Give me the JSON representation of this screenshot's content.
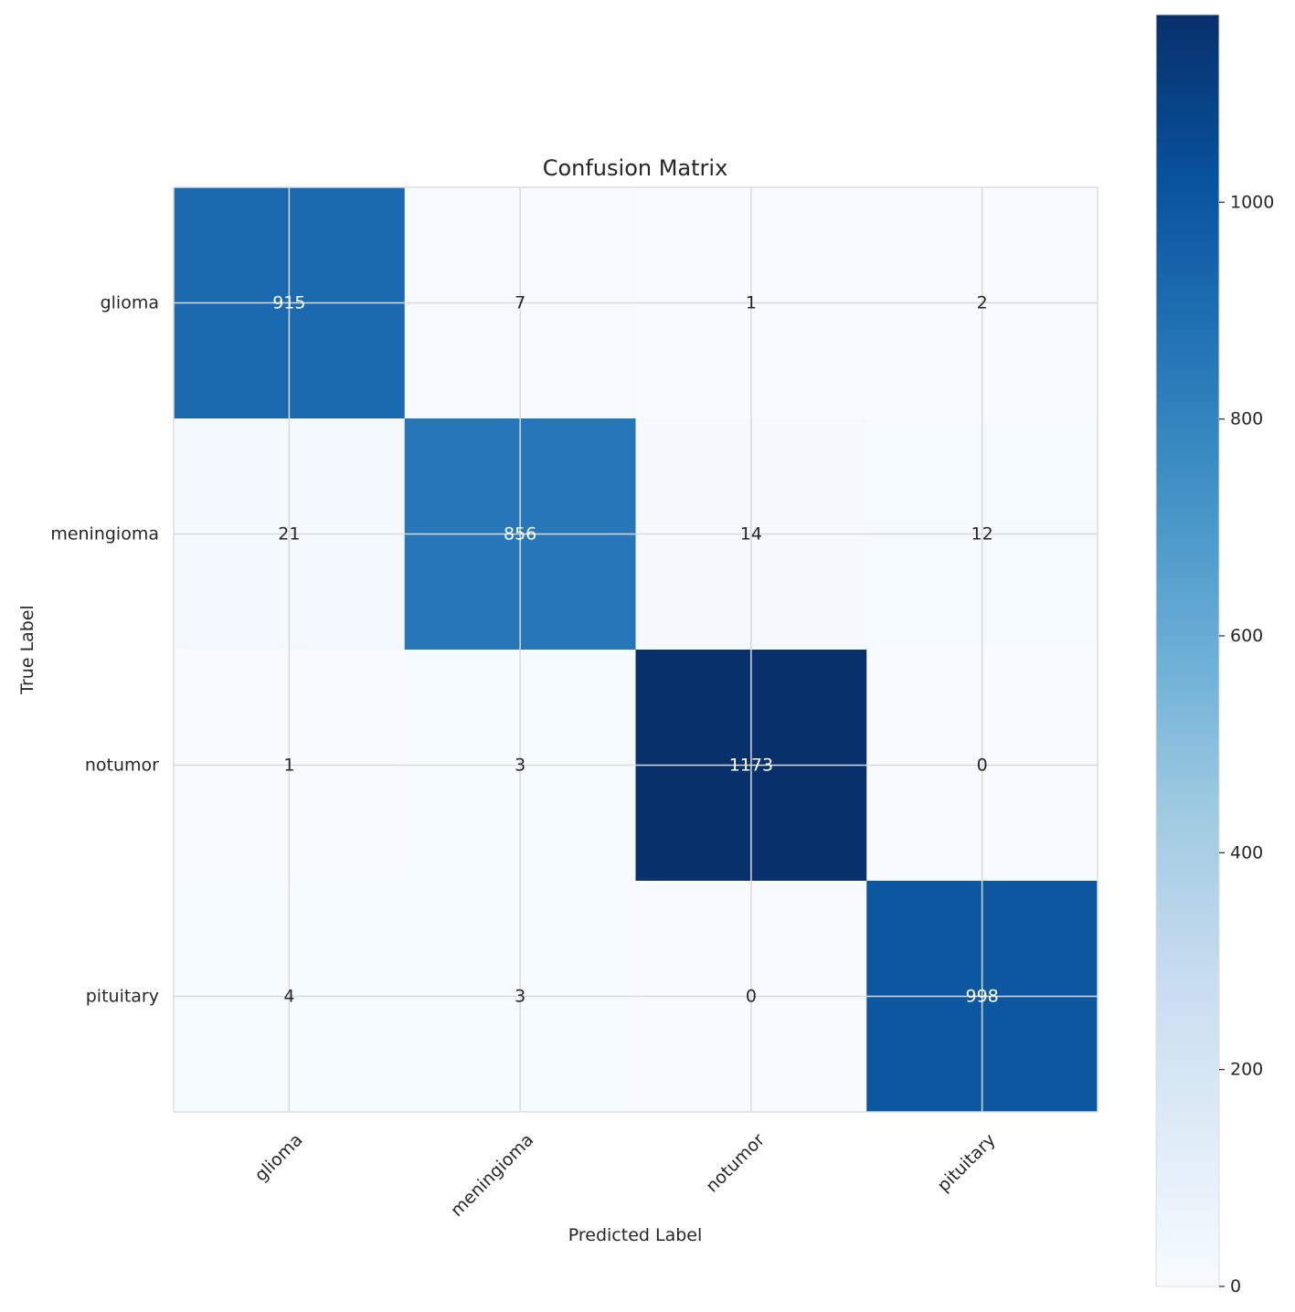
{
  "chart_data": {
    "type": "heatmap",
    "title": "Confusion Matrix",
    "xlabel": "Predicted Label",
    "ylabel": "True Label",
    "x_categories": [
      "glioma",
      "meningioma",
      "notumor",
      "pituitary"
    ],
    "y_categories": [
      "glioma",
      "meningioma",
      "notumor",
      "pituitary"
    ],
    "values": [
      [
        915,
        7,
        1,
        2
      ],
      [
        21,
        856,
        14,
        12
      ],
      [
        1,
        3,
        1173,
        0
      ],
      [
        4,
        3,
        0,
        998
      ]
    ],
    "colormap": "Blues",
    "colorbar": {
      "range": [
        0,
        1173
      ],
      "ticks": [
        0,
        200,
        400,
        600,
        800,
        1000
      ]
    },
    "grid": true,
    "colors": {
      "low": "#f7fbff",
      "high": "#08306b",
      "grid": "#d9d9d9",
      "text_dark": "#262626",
      "text_light": "#ffffff"
    }
  }
}
